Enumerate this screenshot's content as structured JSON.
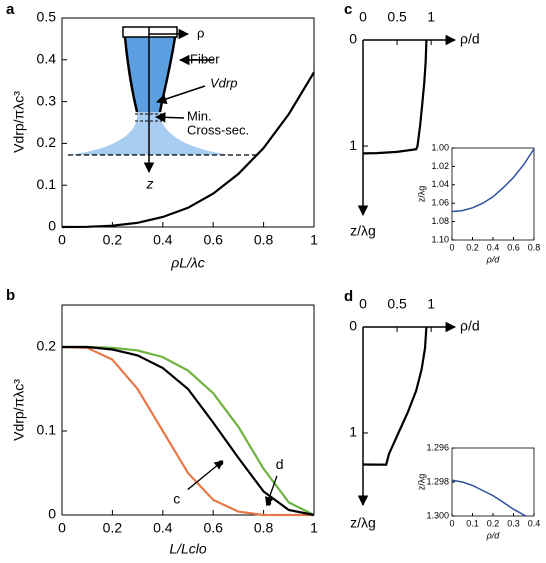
{
  "chart_data": [
    {
      "type": "line",
      "label": "a",
      "xlabel": "ρL/λc",
      "ylabel": "Vdrp/πλc³",
      "xlim": [
        0,
        1
      ],
      "ylim": [
        0,
        0.5
      ],
      "xticks": [
        0,
        0.2,
        0.4,
        0.6,
        0.8,
        1
      ],
      "yticks": [
        0,
        0.1,
        0.2,
        0.3,
        0.4,
        0.5
      ],
      "series": [
        {
          "color": "#000000",
          "x": [
            0,
            0.1,
            0.2,
            0.3,
            0.4,
            0.5,
            0.6,
            0.7,
            0.8,
            0.9,
            1
          ],
          "values": [
            0,
            0.0004,
            0.003,
            0.01,
            0.024,
            0.046,
            0.08,
            0.127,
            0.189,
            0.27,
            0.37
          ]
        }
      ],
      "annotations": [
        "ρ",
        "Fiber",
        "Vdrp",
        "Min.",
        "Cross-sec.",
        "z"
      ]
    },
    {
      "type": "line",
      "label": "b",
      "xlabel": "L/Lclo",
      "ylabel": "Vdrp/πλc³",
      "xlim": [
        0,
        1
      ],
      "ylim": [
        0,
        0.25
      ],
      "xticks": [
        0,
        0.2,
        0.4,
        0.6,
        0.8,
        1
      ],
      "yticks": [
        0,
        0.1,
        0.2
      ],
      "series": [
        {
          "color": "#6db33f",
          "x": [
            0,
            0.1,
            0.2,
            0.3,
            0.4,
            0.5,
            0.6,
            0.7,
            0.8,
            0.9,
            1
          ],
          "values": [
            0.2,
            0.2,
            0.199,
            0.196,
            0.188,
            0.172,
            0.145,
            0.105,
            0.055,
            0.015,
            0
          ]
        },
        {
          "color": "#e8784a",
          "x": [
            0,
            0.1,
            0.2,
            0.3,
            0.4,
            0.5,
            0.6,
            0.7,
            0.8,
            0.9,
            1
          ],
          "values": [
            0.2,
            0.199,
            0.185,
            0.15,
            0.1,
            0.05,
            0.018,
            0.004,
            0,
            0,
            0
          ]
        },
        {
          "color": "#000000",
          "x": [
            0,
            0.1,
            0.2,
            0.3,
            0.4,
            0.5,
            0.6,
            0.7,
            0.8,
            0.9,
            1
          ],
          "values": [
            0.2,
            0.2,
            0.197,
            0.19,
            0.175,
            0.15,
            0.11,
            0.068,
            0.028,
            0.006,
            0
          ]
        }
      ],
      "points": [
        {
          "label": "c",
          "x": 0.63,
          "y": 0.062
        },
        {
          "label": "d",
          "x": 0.82,
          "y": 0.014
        }
      ]
    },
    {
      "type": "line",
      "label": "c",
      "xlabel": "ρ/d",
      "ylabel": "z/λg",
      "xlim": [
        0,
        1.35
      ],
      "ylim": [
        0,
        1.65
      ],
      "xticks": [
        0,
        0.5,
        1
      ],
      "yticks": [
        0,
        1
      ],
      "series": [
        {
          "color": "#000000",
          "x": [
            0.93,
            0.92,
            0.9,
            0.87,
            0.84,
            0.8,
            0.78,
            0.5,
            0.2,
            0
          ],
          "values": [
            0,
            0.2,
            0.4,
            0.6,
            0.8,
            1.0,
            1.03,
            1.055,
            1.066,
            1.069
          ]
        }
      ]
    },
    {
      "type": "line",
      "xlabel": "ρ/d",
      "ylabel": "z/λg",
      "xlim": [
        0,
        0.8
      ],
      "ylim": [
        1,
        1.1
      ],
      "xticks": [
        0,
        0.2,
        0.4,
        0.6,
        0.8
      ],
      "yticks": [
        {
          "value": 1,
          "label": "1.00"
        },
        1.02,
        1.04,
        1.06,
        1.08,
        {
          "value": 1.1,
          "label": "1.10"
        }
      ],
      "series": [
        {
          "color": "#2f4fa0",
          "x": [
            0,
            0.1,
            0.2,
            0.3,
            0.4,
            0.5,
            0.6,
            0.7,
            0.8
          ],
          "values": [
            1.069,
            1.068,
            1.065,
            1.06,
            1.053,
            1.043,
            1.032,
            1.018,
            1.001
          ]
        }
      ]
    },
    {
      "type": "line",
      "label": "d",
      "xlabel": "ρ/d",
      "ylabel": "z/λg",
      "xlim": [
        0,
        1.35
      ],
      "ylim": [
        0,
        1.68
      ],
      "xticks": [
        0,
        0.5,
        1
      ],
      "yticks": [
        0,
        1
      ],
      "series": [
        {
          "color": "#000000",
          "x": [
            0.93,
            0.91,
            0.86,
            0.78,
            0.66,
            0.52,
            0.38,
            0.34,
            0.2,
            0
          ],
          "values": [
            0,
            0.2,
            0.4,
            0.6,
            0.8,
            1.0,
            1.2,
            1.3,
            1.299,
            1.298
          ]
        }
      ]
    },
    {
      "type": "line",
      "xlabel": "ρ/d",
      "ylabel": "z/λg",
      "xlim": [
        0,
        0.4
      ],
      "ylim": [
        1.296,
        1.3
      ],
      "xticks": [
        0,
        0.1,
        0.2,
        0.3,
        0.4
      ],
      "yticks": [
        1.296,
        1.298,
        {
          "value": 1.3,
          "label": "1.300"
        }
      ],
      "series": [
        {
          "color": "#2f4fa0",
          "x": [
            0,
            0.05,
            0.1,
            0.15,
            0.2,
            0.25,
            0.3,
            0.36
          ],
          "values": [
            1.2979,
            1.298,
            1.2982,
            1.2985,
            1.2988,
            1.2992,
            1.2996,
            1.3
          ]
        }
      ]
    }
  ]
}
